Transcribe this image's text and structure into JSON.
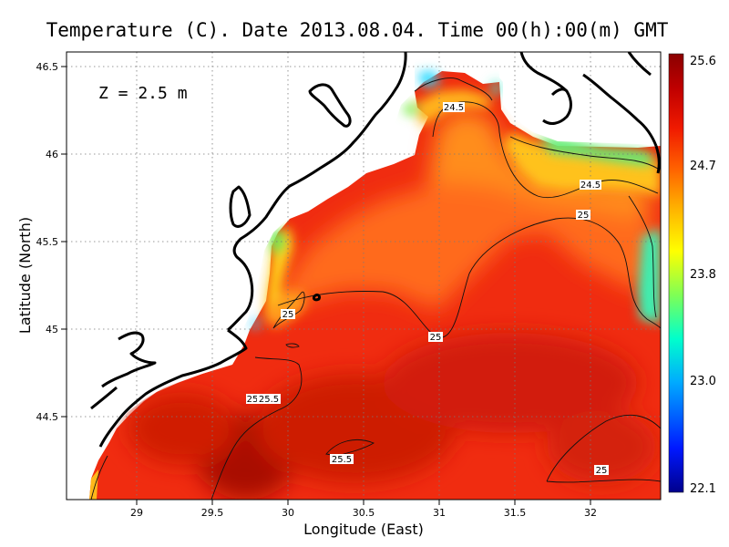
{
  "title": "Temperature (C). Date 2013.08.04. Time 00(h):00(m) GMT",
  "depth_label": "Z = 2.5 m",
  "xaxis_label": "Longitude (East)",
  "yaxis_label": "Latitude (North)",
  "lon_range": [
    28.55,
    32.45
  ],
  "lat_range": [
    44.05,
    46.55
  ],
  "x_ticks": [
    "29",
    "29.5",
    "30",
    "30.5",
    "31",
    "31.5",
    "32"
  ],
  "y_ticks": [
    "46.5",
    "46",
    "45.5",
    "45",
    "44.5"
  ],
  "colorbar": {
    "ticks": [
      "25.6",
      "24.7",
      "23.8",
      "23.0",
      "22.1"
    ],
    "min": 22.1,
    "max": 25.6,
    "colors": [
      "#00008c",
      "#0018ff",
      "#00aaff",
      "#00ffcc",
      "#7fff55",
      "#ffff00",
      "#ffb000",
      "#ff6000",
      "#f01a00",
      "#c00000",
      "#8a0000"
    ]
  },
  "contour_labels": [
    "24.5",
    "24.5",
    "25",
    "25",
    "25",
    "25",
    "25.5",
    "25.5",
    "25",
    "25"
  ],
  "field_colors": {
    "sea_base": "#f02c10",
    "warm": "#c81c08",
    "orange": "#ff7a1a",
    "yellow": "#ffd21a",
    "green": "#4cf06e",
    "cyan": "#22d8ff",
    "land": "#ffffff"
  }
}
